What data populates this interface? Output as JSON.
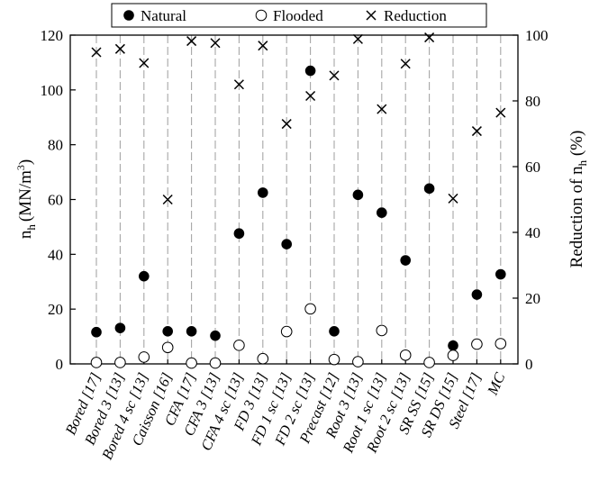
{
  "chart_data": {
    "type": "scatter",
    "categories": [
      "Bored [17]",
      "Bored 3 [13]",
      "Bored 4 sc [13]",
      "Caisson [16]",
      "CFA [17]",
      "CFA 3 [13]",
      "CFA 4 sc [13]",
      "FD 3 [13]",
      "FD 1 sc [13]",
      "FD 2 sc [13]",
      "Precast [12]",
      "Root 3 [13]",
      "Root 1 sc [13]",
      "Root 2 sc [13]",
      "SR SS [15]",
      "SR DS [15]",
      "Steel [17]",
      "MC"
    ],
    "series": [
      {
        "name": "Natural",
        "axis": "left",
        "marker": "filled-circle",
        "values": [
          11.6,
          13.1,
          32.0,
          11.9,
          11.9,
          10.3,
          47.6,
          62.5,
          43.7,
          107.0,
          11.9,
          61.7,
          55.2,
          37.8,
          64.0,
          6.7,
          25.3,
          32.7
        ]
      },
      {
        "name": "Flooded",
        "axis": "left",
        "marker": "open-circle",
        "values": [
          0.5,
          0.5,
          2.5,
          6.0,
          0.3,
          0.3,
          6.8,
          1.9,
          11.8,
          20.1,
          1.6,
          0.8,
          12.2,
          3.2,
          0.5,
          3.1,
          7.2,
          7.4
        ]
      },
      {
        "name": "Reduction",
        "axis": "right",
        "marker": "x",
        "values": [
          94.8,
          95.8,
          91.5,
          50.0,
          98.2,
          97.6,
          85.0,
          96.8,
          73.0,
          81.5,
          87.7,
          98.8,
          77.5,
          91.3,
          99.3,
          50.3,
          70.8,
          76.4
        ]
      }
    ],
    "ylabel_main": "n",
    "ylabel_sub": "h",
    "ylabel_unit": "(MN/m",
    "ylabel_sup": "3",
    "ylabel_close": ")",
    "y2label_main": "Reduction of n",
    "y2label_sub": "h",
    "y2label_close": " (%)",
    "ylim": [
      0,
      120
    ],
    "yticks": [
      0,
      20,
      40,
      60,
      80,
      100,
      120
    ],
    "y2lim": [
      0,
      100
    ],
    "y2ticks": [
      0,
      20,
      40,
      60,
      80,
      100
    ],
    "grid": "vertical dashed per category",
    "legend_position": "top"
  },
  "colors": {
    "axis": "#000000",
    "grid": "#a6a6a6",
    "filled_marker": "#000000",
    "open_marker_fill": "#ffffff"
  }
}
